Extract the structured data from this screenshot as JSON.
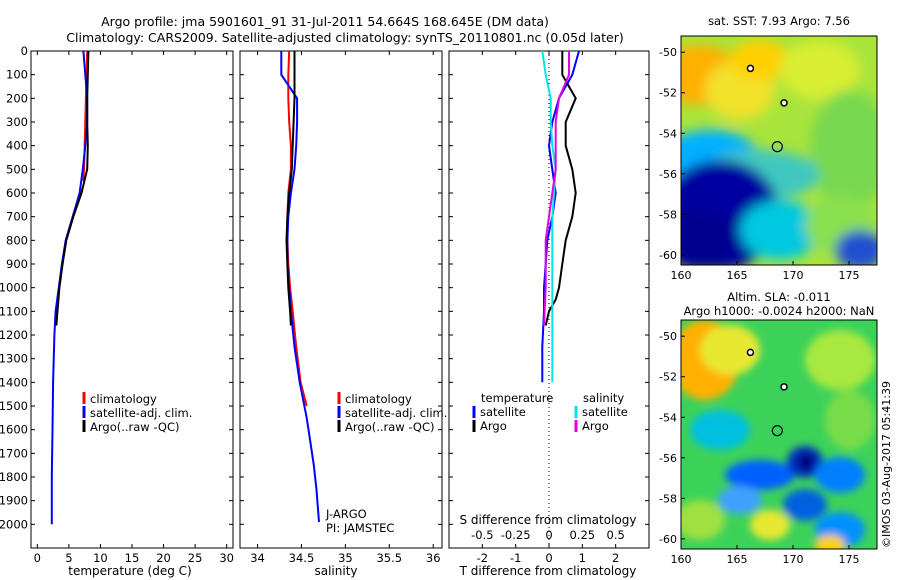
{
  "header": {
    "line1": "Argo profile: jma 5901601_91 31-Jul-2011 54.664S 168.645E (DM data)",
    "line2": "Climatology: CARS2009. Satellite-adjusted climatology: synTS_20110801.nc (0.05d later)"
  },
  "colors": {
    "climatology": "#ff0000",
    "satellite": "#0000ff",
    "argo": "#000000",
    "sat_salinity": "#00e5e5",
    "argo_salinity": "#e000e0"
  },
  "chart_data": [
    {
      "type": "line",
      "panel": "temperature",
      "xlabel": "temperature (deg C)",
      "ylabel": "",
      "xlim": [
        -1,
        31
      ],
      "ylim": [
        2100,
        0
      ],
      "xticks": [
        0,
        5,
        10,
        15,
        20,
        25,
        30
      ],
      "yticks": [
        0,
        100,
        200,
        300,
        400,
        500,
        600,
        700,
        800,
        900,
        1000,
        1100,
        1200,
        1300,
        1400,
        1500,
        1600,
        1700,
        1800,
        1900,
        2000
      ],
      "legend": [
        "climatology",
        "satellite-adj. clim.",
        "Argo(..raw -QC)"
      ],
      "series": [
        {
          "name": "climatology",
          "color": "#ff0000",
          "x": [
            7.9,
            7.8,
            7.7,
            7.6,
            7.5,
            7.4,
            7.3
          ],
          "y": [
            0,
            100,
            200,
            300,
            400,
            500,
            550
          ]
        },
        {
          "name": "satellite-adj. clim.",
          "color": "#0000ff",
          "x": [
            7.3,
            7.6,
            7.9,
            7.9,
            7.6,
            7.2,
            6.7,
            5.6,
            4.5,
            3.9,
            3.4,
            2.9,
            2.7,
            2.5,
            2.4,
            2.3,
            2.3
          ],
          "y": [
            0,
            100,
            200,
            300,
            400,
            500,
            600,
            700,
            800,
            900,
            1000,
            1100,
            1200,
            1400,
            1600,
            1800,
            2000
          ]
        },
        {
          "name": "Argo(..raw -QC)",
          "color": "#000000",
          "x": [
            8.1,
            8.0,
            7.9,
            7.9,
            8.0,
            7.9,
            7.0,
            5.7,
            4.6,
            4.0,
            3.5,
            3.0
          ],
          "y": [
            0,
            100,
            200,
            300,
            400,
            500,
            600,
            700,
            800,
            900,
            1000,
            1160
          ]
        }
      ]
    },
    {
      "type": "line",
      "panel": "salinity",
      "xlabel": "salinity",
      "ylabel": "",
      "xlim": [
        33.8,
        36.1
      ],
      "ylim": [
        2100,
        0
      ],
      "xticks": [
        34,
        34.5,
        35,
        35.5,
        36
      ],
      "legend": [
        "climatology",
        "satellite-adj. clim.",
        "Argo(..raw -QC)"
      ],
      "annotation": [
        "J-ARGO",
        "PI: JAMSTEC"
      ],
      "series": [
        {
          "name": "climatology",
          "color": "#ff0000",
          "x": [
            34.36,
            34.35,
            34.35,
            34.36,
            34.38,
            34.38,
            34.35,
            34.34,
            34.34,
            34.35,
            34.37,
            34.4,
            34.44,
            34.49,
            34.56
          ],
          "y": [
            0,
            100,
            200,
            300,
            400,
            500,
            600,
            700,
            800,
            900,
            1000,
            1100,
            1250,
            1400,
            1500
          ]
        },
        {
          "name": "satellite-adj. clim.",
          "color": "#0000ff",
          "x": [
            34.27,
            34.27,
            34.45,
            34.45,
            34.44,
            34.42,
            34.38,
            34.35,
            34.34,
            34.34,
            34.36,
            34.38,
            34.42,
            34.48,
            34.56,
            34.6,
            34.64,
            34.67,
            34.7
          ],
          "y": [
            0,
            100,
            200,
            300,
            400,
            500,
            600,
            700,
            800,
            900,
            1000,
            1100,
            1250,
            1400,
            1550,
            1650,
            1750,
            1850,
            1990
          ]
        },
        {
          "name": "Argo(..raw -QC)",
          "color": "#000000",
          "x": [
            34.42,
            34.42,
            34.42,
            34.41,
            34.4,
            34.39,
            34.36,
            34.34,
            34.33,
            34.34,
            34.35,
            34.37,
            34.38
          ],
          "y": [
            0,
            100,
            200,
            300,
            400,
            500,
            600,
            700,
            800,
            900,
            1000,
            1100,
            1160
          ]
        }
      ]
    },
    {
      "type": "line",
      "panel": "difference",
      "xlabel": "T difference from climatology",
      "xlabel2": "S difference from climatology",
      "xlim": [
        -3,
        3
      ],
      "ylim": [
        2100,
        0
      ],
      "xticks": [
        -2,
        -1,
        0,
        1,
        2
      ],
      "xticks_s": [
        "-0.5",
        "-0.25",
        "0",
        "0.25",
        "0.5"
      ],
      "legend_headers": [
        "temperature",
        "salinity"
      ],
      "legend": [
        "satellite",
        "Argo",
        "satellite",
        "Argo"
      ],
      "series": [
        {
          "name": "satellite",
          "color": "#0000ff",
          "x": [
            0.9,
            0.7,
            0.3,
            0.1,
            0.0,
            0.1,
            0.2,
            0.1,
            -0.05,
            -0.1,
            -0.15,
            -0.15,
            -0.2,
            -0.2
          ],
          "y": [
            0,
            100,
            200,
            300,
            400,
            500,
            600,
            700,
            800,
            900,
            1000,
            1100,
            1250,
            1400
          ]
        },
        {
          "name": "Argo",
          "color": "#000000",
          "x": [
            0.4,
            0.4,
            0.8,
            0.5,
            0.5,
            0.7,
            0.8,
            0.7,
            0.5,
            0.4,
            0.3,
            0.2,
            0.0,
            -0.1
          ],
          "y": [
            0,
            100,
            200,
            300,
            400,
            500,
            600,
            700,
            800,
            900,
            1000,
            1050,
            1100,
            1160
          ]
        },
        {
          "name": "satellite",
          "color": "#00e5e5",
          "x": [
            -0.2,
            -0.1,
            0.05,
            0.05,
            0.1,
            0.2,
            0.15,
            0.1,
            0.1,
            0.1,
            0.1,
            0.1,
            0.1,
            0.1
          ],
          "y": [
            0,
            100,
            200,
            300,
            400,
            500,
            600,
            700,
            800,
            900,
            1000,
            1100,
            1250,
            1400
          ]
        },
        {
          "name": "Argo",
          "color": "#e000e0",
          "x": [
            0.6,
            0.6,
            0.3,
            0.2,
            0.2,
            0.2,
            0.1,
            0.0,
            -0.1,
            -0.1,
            -0.1,
            -0.15
          ],
          "y": [
            0,
            100,
            200,
            300,
            400,
            500,
            600,
            700,
            800,
            900,
            1000,
            1160
          ]
        }
      ]
    },
    {
      "type": "heatmap",
      "panel": "sst_map",
      "title": "sat. SST: 7.93 Argo: 7.56",
      "xlim": [
        160,
        177.5
      ],
      "ylim": [
        -60.5,
        -49.2
      ],
      "xticks": [
        160,
        165,
        170,
        175
      ],
      "yticks": [
        -50,
        -52,
        -54,
        -56,
        -58,
        -60
      ],
      "markers": [
        {
          "lon": 168.6,
          "lat": -54.66,
          "kind": "argo-circle"
        },
        {
          "lon": 166.2,
          "lat": -50.8,
          "kind": "island"
        },
        {
          "lon": 169.2,
          "lat": -52.5,
          "kind": "island"
        }
      ]
    },
    {
      "type": "heatmap",
      "panel": "sla_map",
      "title": "Altim. SLA: -0.011",
      "subtitle": "Argo h1000: -0.0024 h2000: NaN",
      "xlim": [
        160,
        177.5
      ],
      "ylim": [
        -60.5,
        -49.2
      ],
      "xticks": [
        160,
        165,
        170,
        175
      ],
      "yticks": [
        -50,
        -52,
        -54,
        -56,
        -58,
        -60
      ],
      "markers": [
        {
          "lon": 168.6,
          "lat": -54.66,
          "kind": "argo-circle"
        },
        {
          "lon": 166.2,
          "lat": -50.8,
          "kind": "island"
        },
        {
          "lon": 169.2,
          "lat": -52.5,
          "kind": "island"
        }
      ]
    }
  ],
  "watermark": "©IMOS 03-Aug-2017 05:41:39"
}
